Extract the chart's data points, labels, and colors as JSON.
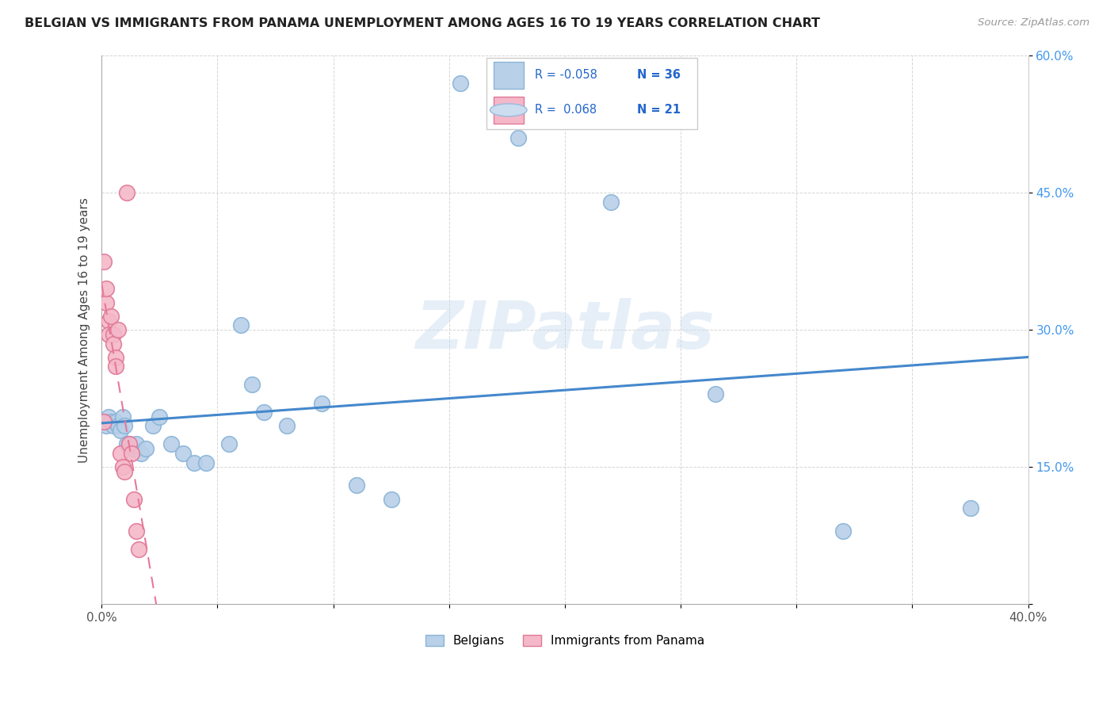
{
  "title": "BELGIAN VS IMMIGRANTS FROM PANAMA UNEMPLOYMENT AMONG AGES 16 TO 19 YEARS CORRELATION CHART",
  "source": "Source: ZipAtlas.com",
  "ylabel": "Unemployment Among Ages 16 to 19 years",
  "xlim": [
    0.0,
    0.4
  ],
  "ylim": [
    0.0,
    0.6
  ],
  "xtick_pos": [
    0.0,
    0.05,
    0.1,
    0.15,
    0.2,
    0.25,
    0.3,
    0.35,
    0.4
  ],
  "xtick_labels": [
    "0.0%",
    "",
    "",
    "",
    "",
    "",
    "",
    "",
    "40.0%"
  ],
  "ytick_pos": [
    0.0,
    0.15,
    0.3,
    0.45,
    0.6
  ],
  "ytick_labels": [
    "",
    "15.0%",
    "30.0%",
    "45.0%",
    "60.0%"
  ],
  "belgian_fill": "#b8d0e8",
  "belgian_edge": "#8ab4d8",
  "panama_fill": "#f4b8c8",
  "panama_edge": "#e07898",
  "trend_blue_color": "#4488cc",
  "trend_pink_color": "#e87898",
  "watermark": "ZIPatlas",
  "legend_R_belgian": "-0.058",
  "legend_N_belgian": "36",
  "legend_R_panama": "0.068",
  "legend_N_panama": "21",
  "legend_label_belgian": "Belgians",
  "legend_label_panama": "Immigrants from Panama",
  "belgians_x": [
    0.001,
    0.002,
    0.003,
    0.004,
    0.005,
    0.006,
    0.007,
    0.008,
    0.009,
    0.01,
    0.011,
    0.012,
    0.013,
    0.015,
    0.017,
    0.019,
    0.022,
    0.025,
    0.03,
    0.035,
    0.04,
    0.06,
    0.065,
    0.07,
    0.08,
    0.095,
    0.11,
    0.125,
    0.155,
    0.18,
    0.22,
    0.265,
    0.32,
    0.375,
    0.055,
    0.045
  ],
  "belgians_y": [
    0.2,
    0.195,
    0.205,
    0.2,
    0.195,
    0.2,
    0.195,
    0.19,
    0.205,
    0.195,
    0.175,
    0.175,
    0.17,
    0.175,
    0.165,
    0.17,
    0.195,
    0.205,
    0.175,
    0.165,
    0.155,
    0.305,
    0.24,
    0.21,
    0.195,
    0.22,
    0.13,
    0.115,
    0.57,
    0.51,
    0.44,
    0.23,
    0.08,
    0.105,
    0.175,
    0.155
  ],
  "panama_x": [
    0.001,
    0.001,
    0.002,
    0.002,
    0.003,
    0.003,
    0.004,
    0.005,
    0.005,
    0.006,
    0.006,
    0.007,
    0.008,
    0.009,
    0.01,
    0.011,
    0.012,
    0.013,
    0.014,
    0.015,
    0.016
  ],
  "panama_y": [
    0.2,
    0.375,
    0.33,
    0.345,
    0.31,
    0.295,
    0.315,
    0.295,
    0.285,
    0.27,
    0.26,
    0.3,
    0.165,
    0.15,
    0.145,
    0.45,
    0.175,
    0.165,
    0.115,
    0.08,
    0.06
  ]
}
